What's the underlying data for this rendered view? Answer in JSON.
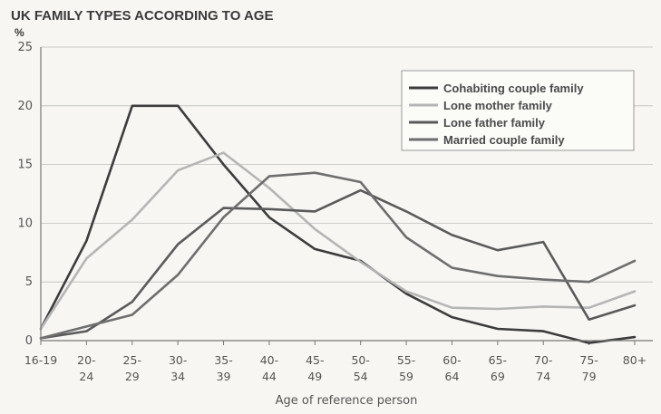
{
  "chart_data": {
    "type": "line",
    "title": "UK FAMILY TYPES ACCORDING TO AGE",
    "yunit": "%",
    "xlabel": "Age of reference person",
    "ylabel": "",
    "ylim": [
      0,
      25
    ],
    "yticks": [
      0,
      5,
      10,
      15,
      20,
      25
    ],
    "grid": true,
    "legend_position": "top-right",
    "categories": [
      [
        "16-19"
      ],
      [
        "20-",
        "24"
      ],
      [
        "25-",
        "29"
      ],
      [
        "30-",
        "34"
      ],
      [
        "35-",
        "39"
      ],
      [
        "40-",
        "44"
      ],
      [
        "45-",
        "49"
      ],
      [
        "50-",
        "54"
      ],
      [
        "55-",
        "59"
      ],
      [
        "60-",
        "64"
      ],
      [
        "65-",
        "69"
      ],
      [
        "70-",
        "74"
      ],
      [
        "75-",
        "79"
      ],
      [
        "80+"
      ]
    ],
    "series": [
      {
        "name": "Cohabiting couple family",
        "color": "#3c3c3c",
        "values": [
          1,
          8.5,
          20,
          20,
          15,
          10.5,
          7.8,
          6.8,
          4,
          2,
          1,
          0.8,
          -0.2,
          0.3
        ]
      },
      {
        "name": "Lone mother family",
        "color": "#b5b5b5",
        "values": [
          1,
          7,
          10.3,
          14.5,
          16,
          13,
          9.5,
          6.7,
          4.2,
          2.8,
          2.7,
          2.9,
          2.8,
          4.2
        ]
      },
      {
        "name": "Lone father family",
        "color": "#5a5a5a",
        "values": [
          0.2,
          0.8,
          3.3,
          8.2,
          11.3,
          11.2,
          11,
          12.8,
          11,
          9,
          7.7,
          8.4,
          1.8,
          3
        ]
      },
      {
        "name": "Married couple family",
        "color": "#6e6e6e",
        "values": [
          0.2,
          1.2,
          2.2,
          5.6,
          10.5,
          14,
          14.3,
          13.5,
          8.8,
          6.2,
          5.5,
          5.2,
          5,
          6.8
        ]
      }
    ]
  }
}
